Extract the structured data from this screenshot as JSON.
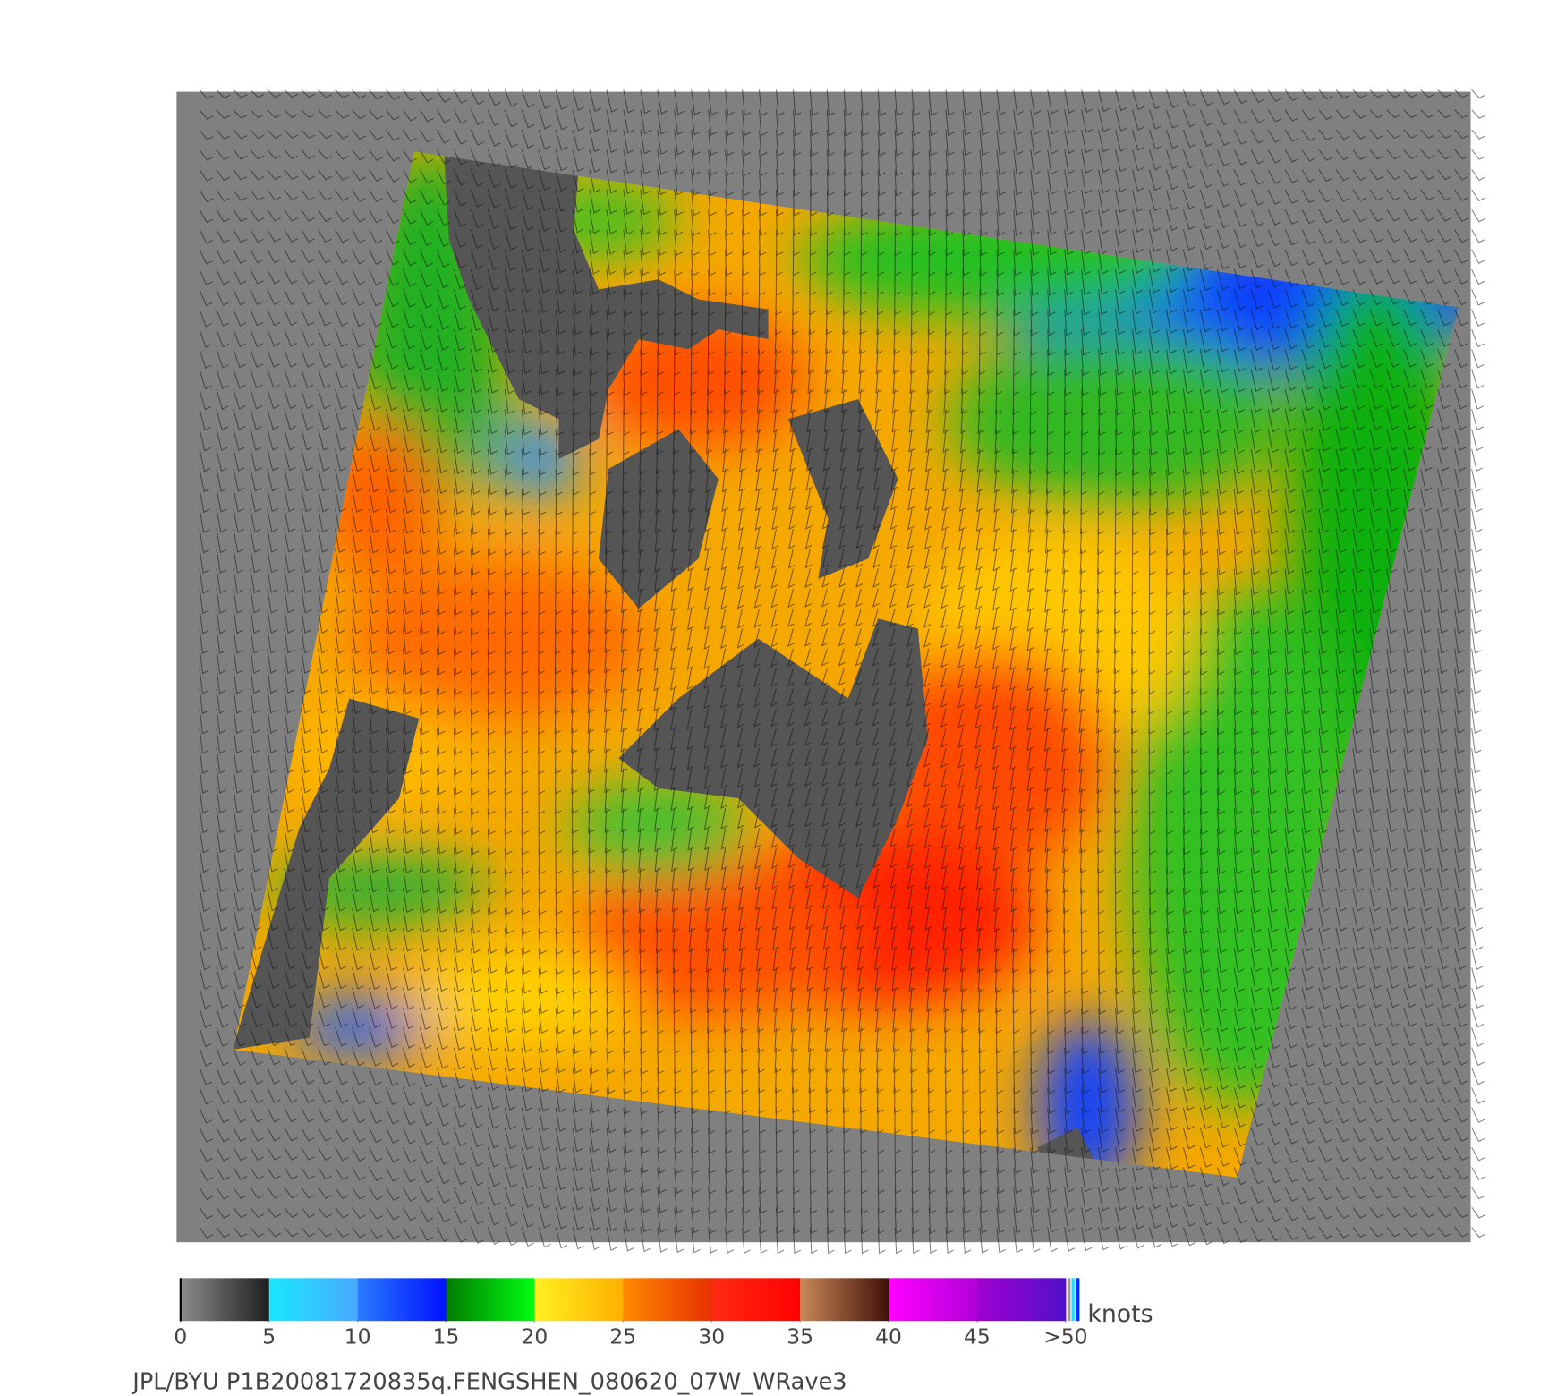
{
  "colorbar": {
    "ticks": [
      0,
      5,
      10,
      15,
      20,
      25,
      30,
      35,
      40,
      45,
      {
        "value": 50,
        "label": ">50"
      }
    ],
    "colors": [
      [
        "#8c8c8c",
        "#1e1e1e"
      ],
      [
        "#18e8ff",
        "#4aa8ff"
      ],
      [
        "#2a7cff",
        "#0010ff"
      ],
      [
        "#007a00",
        "#00ff10"
      ],
      [
        "#fff020",
        "#ffb000"
      ],
      [
        "#ff8a00",
        "#e83000"
      ],
      [
        "#ff2a10",
        "#ff0000"
      ],
      [
        "#c88858",
        "#401008"
      ],
      [
        "#ff00ff",
        "#b000d8"
      ],
      [
        "#a000d0",
        "#5010c8"
      ]
    ],
    "unit": "knots"
  },
  "caption": "JPL/BYU  P1B20081720835q.FENGSHEN_080620_07W_WRave3"
}
